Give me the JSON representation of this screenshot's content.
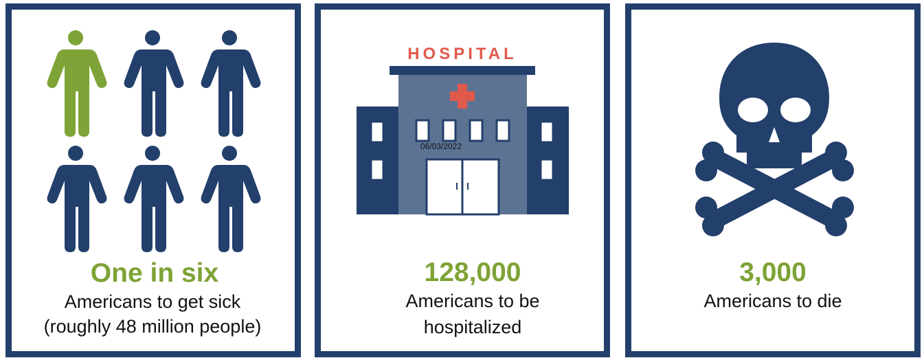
{
  "panels": [
    {
      "headline": "One in six",
      "lines": [
        "Americans to get sick",
        "(roughly 48 million people)"
      ]
    },
    {
      "sign": "HOSPITAL",
      "stamp": "06/03/2022",
      "headline": "128,000",
      "lines": [
        "Americans to be",
        "hospitalized"
      ]
    },
    {
      "headline": "3,000",
      "lines": [
        "Americans to die"
      ]
    }
  ]
}
